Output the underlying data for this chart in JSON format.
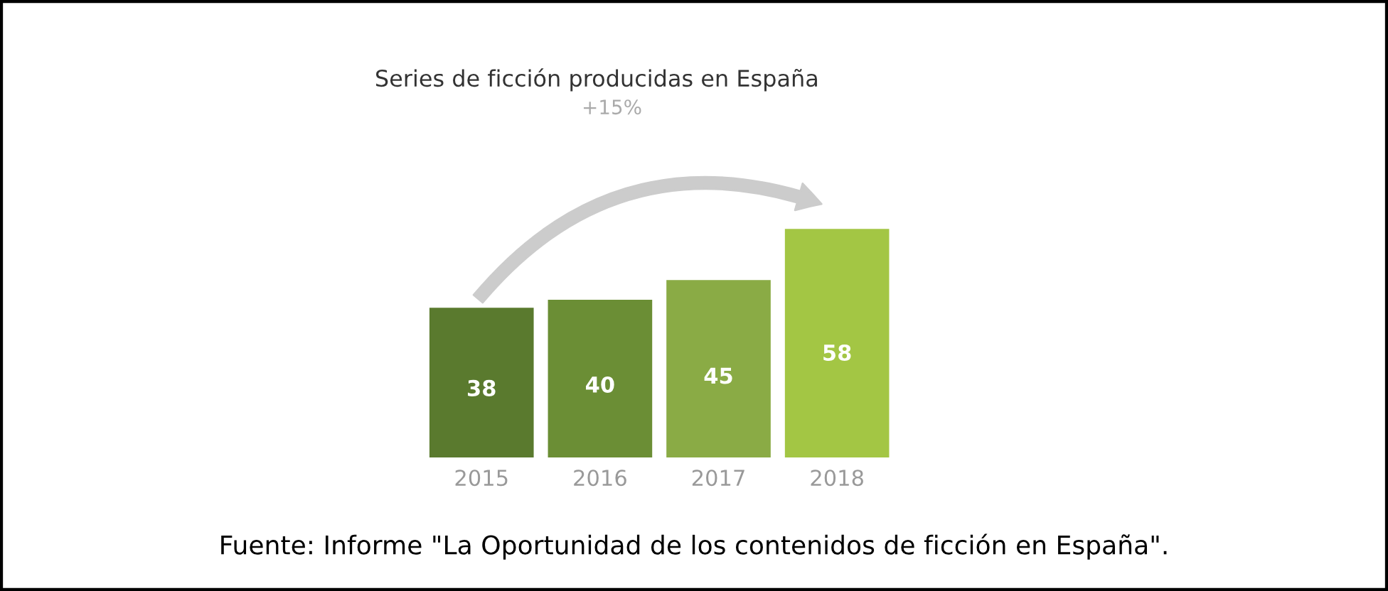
{
  "chart_data": {
    "type": "bar",
    "title": "Series de ficción producidas en España",
    "categories": [
      "2015",
      "2016",
      "2017",
      "2018"
    ],
    "values": [
      38,
      40,
      45,
      58
    ],
    "colors": [
      "#5a7a2e",
      "#6b8e35",
      "#8aab45",
      "#a3c644"
    ],
    "data_labels": true,
    "grid": false,
    "legend": false,
    "annotations": [
      "+15%",
      "Fuente: Informe \"La Oportunidad de los contenidos de ficción en España\"."
    ]
  }
}
